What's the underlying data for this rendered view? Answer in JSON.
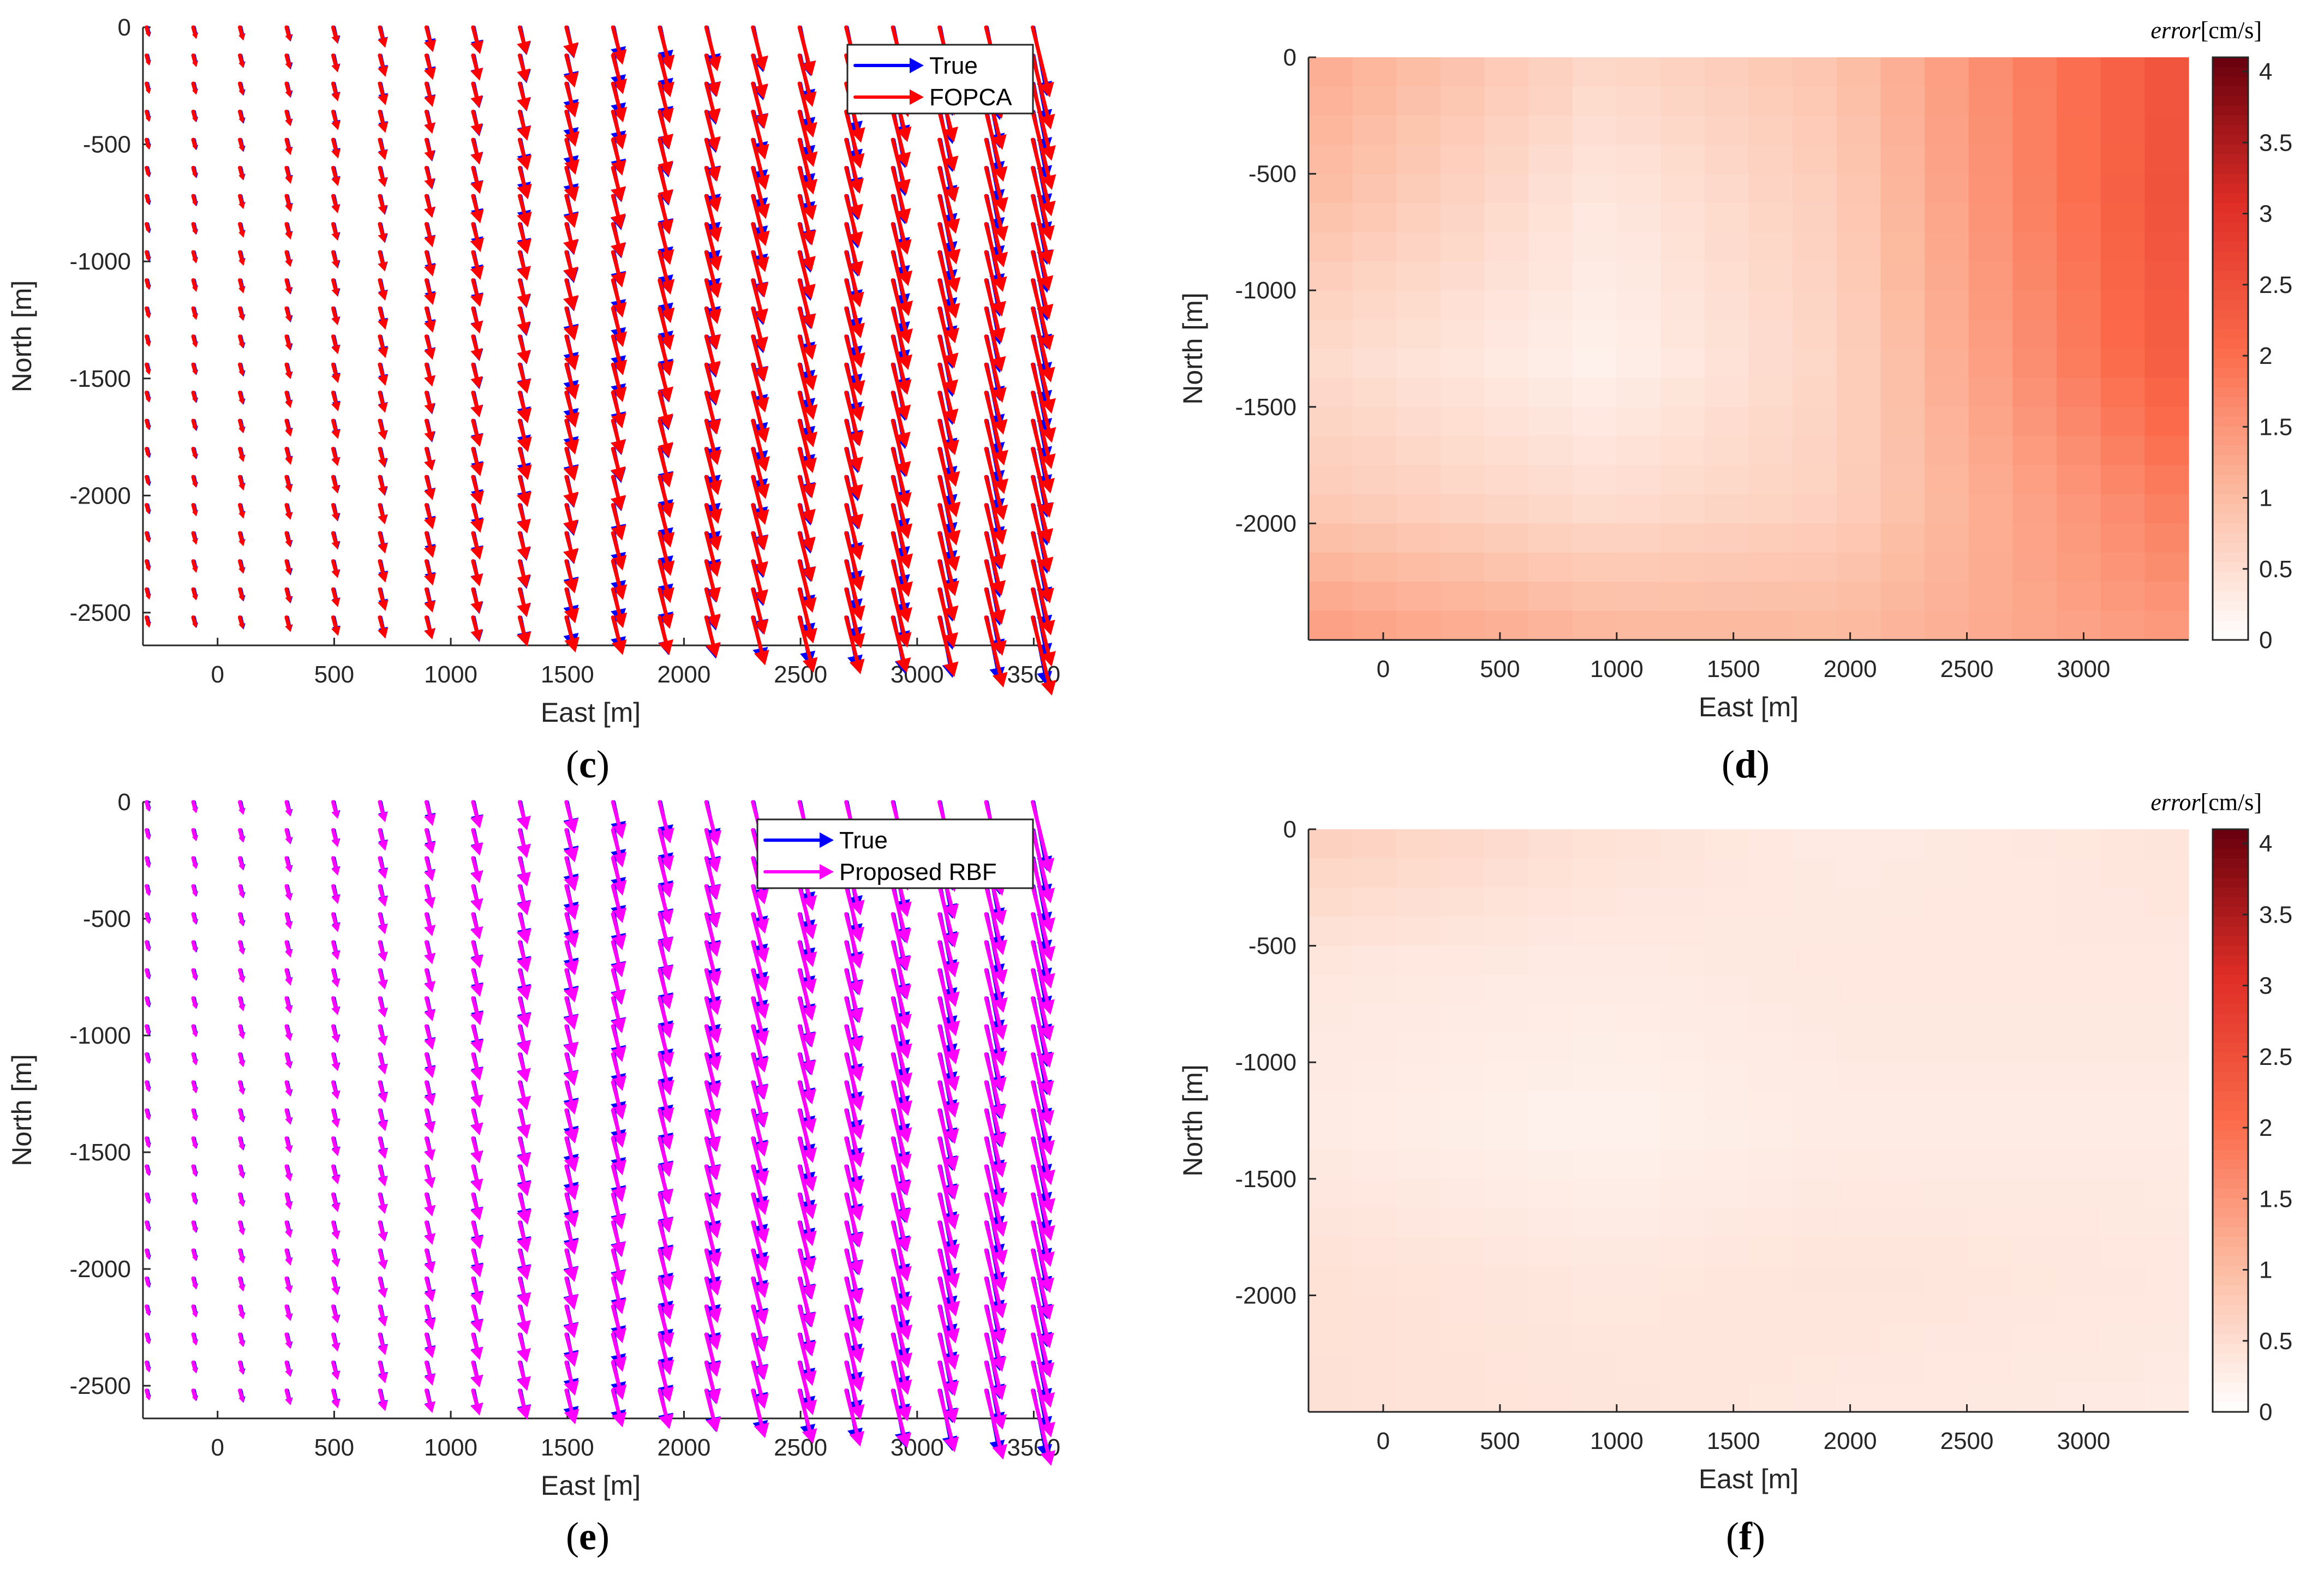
{
  "figure": {
    "panels": [
      {
        "id": "c",
        "label": "c"
      },
      {
        "id": "d",
        "label": "d"
      },
      {
        "id": "e",
        "label": "e"
      },
      {
        "id": "f",
        "label": "f"
      }
    ]
  },
  "colors": {
    "true": "#0000ff",
    "fopca": "#ff0000",
    "rbf": "#ff00ff",
    "axis": "#262626"
  },
  "chart_data": [
    {
      "panel": "c",
      "type": "quiver",
      "xlabel": "East [m]",
      "ylabel": "North [m]",
      "xlim": [
        -320,
        3520
      ],
      "ylim": [
        -2640,
        0
      ],
      "xticks": [
        0,
        500,
        1000,
        1500,
        2000,
        2500,
        3000,
        3500
      ],
      "yticks": [
        0,
        -500,
        -1000,
        -1500,
        -2000,
        -2500
      ],
      "grid_x": [
        -300,
        -100,
        100,
        300,
        500,
        700,
        900,
        1100,
        1300,
        1500,
        1700,
        1900,
        2100,
        2300,
        2500,
        2700,
        2900,
        3100,
        3300,
        3500
      ],
      "grid_y_step": -120,
      "legend": {
        "position": "top-right",
        "entries": [
          "True",
          "FOPCA"
        ]
      },
      "series": [
        {
          "name": "True",
          "color": "#0000ff"
        },
        {
          "name": "FOPCA",
          "color": "#ff0000"
        }
      ],
      "speed_trend": "increases from west (~0) to east (max)"
    },
    {
      "panel": "d",
      "type": "heatmap",
      "xlabel": "East [m]",
      "ylabel": "North [m]",
      "xlim": [
        -320,
        3450
      ],
      "ylim": [
        -2500,
        0
      ],
      "xticks": [
        0,
        500,
        1000,
        1500,
        2000,
        2500,
        3000
      ],
      "yticks": [
        0,
        -500,
        -1000,
        -1500,
        -2000
      ],
      "colorbar": {
        "title_italic": "error",
        "title_unit": "[cm/s]",
        "range": [
          0,
          4.1
        ],
        "ticks": [
          0,
          0.5,
          1,
          1.5,
          2,
          2.5,
          3,
          3.5,
          4
        ]
      },
      "anchors_e": [
        -320,
        950,
        1950,
        3450
      ],
      "anchors_n": [
        0,
        -600,
        -1300,
        -1900,
        -2500
      ],
      "values": [
        [
          1.25,
          0.6,
          0.9,
          2.5
        ],
        [
          1.0,
          0.35,
          0.75,
          2.55
        ],
        [
          0.55,
          0.2,
          0.65,
          2.35
        ],
        [
          0.8,
          0.5,
          0.7,
          1.85
        ],
        [
          1.45,
          1.1,
          1.05,
          1.45
        ]
      ]
    },
    {
      "panel": "e",
      "type": "quiver",
      "xlabel": "East [m]",
      "ylabel": "North [m]",
      "xlim": [
        -320,
        3520
      ],
      "ylim": [
        -2640,
        0
      ],
      "xticks": [
        0,
        500,
        1000,
        1500,
        2000,
        2500,
        3000,
        3500
      ],
      "yticks": [
        0,
        -500,
        -1000,
        -1500,
        -2000,
        -2500
      ],
      "grid_x": [
        -300,
        -100,
        100,
        300,
        500,
        700,
        900,
        1100,
        1300,
        1500,
        1700,
        1900,
        2100,
        2300,
        2500,
        2700,
        2900,
        3100,
        3300,
        3500
      ],
      "grid_y_step": -120,
      "legend": {
        "position": "top-right",
        "entries": [
          "True",
          "Proposed RBF"
        ]
      },
      "series": [
        {
          "name": "True",
          "color": "#0000ff"
        },
        {
          "name": "Proposed RBF",
          "color": "#ff00ff"
        }
      ],
      "speed_trend": "increases from west (~0) to east (max)"
    },
    {
      "panel": "f",
      "type": "heatmap",
      "xlabel": "East [m]",
      "ylabel": "North [m]",
      "xlim": [
        -320,
        3450
      ],
      "ylim": [
        -2500,
        0
      ],
      "xticks": [
        0,
        500,
        1000,
        1500,
        2000,
        2500,
        3000
      ],
      "yticks": [
        0,
        -500,
        -1000,
        -1500,
        -2000
      ],
      "colorbar": {
        "title_italic": "error",
        "title_unit": "[cm/s]",
        "range": [
          0,
          4.1
        ],
        "ticks": [
          0,
          0.5,
          1,
          1.5,
          2,
          2.5,
          3,
          3.5,
          4
        ]
      },
      "anchors_e": [
        -320,
        950,
        1950,
        3450
      ],
      "anchors_n": [
        0,
        -600,
        -1300,
        -1900,
        -2500
      ],
      "values": [
        [
          0.75,
          0.45,
          0.3,
          0.4
        ],
        [
          0.35,
          0.3,
          0.35,
          0.35
        ],
        [
          0.3,
          0.2,
          0.3,
          0.3
        ],
        [
          0.45,
          0.35,
          0.4,
          0.35
        ],
        [
          0.45,
          0.4,
          0.35,
          0.3
        ]
      ]
    }
  ]
}
